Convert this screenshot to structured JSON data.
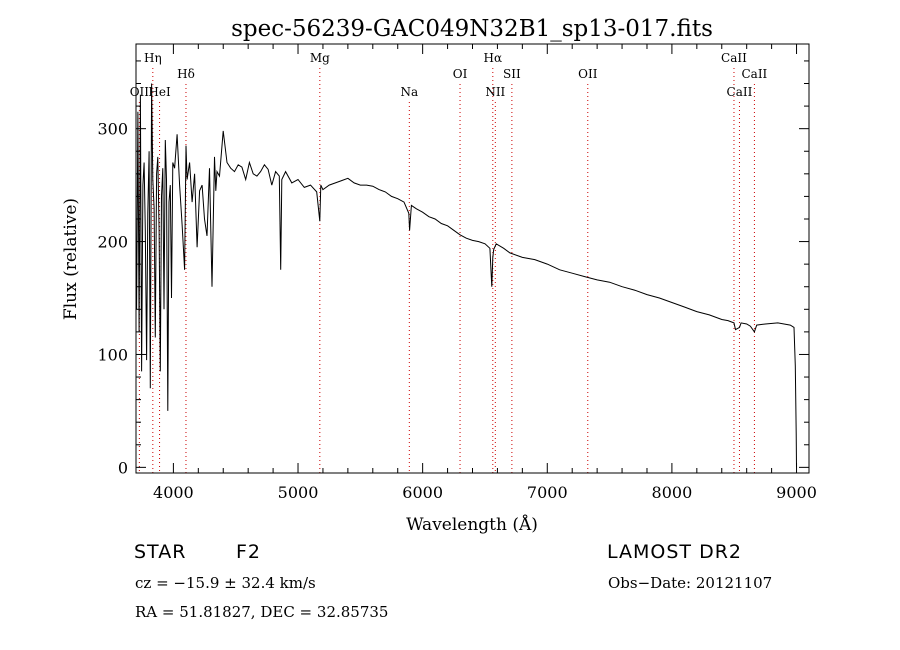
{
  "chart_data": {
    "type": "line",
    "title": "spec-56239-GAC049N32B1_sp13-017.fits",
    "xlabel": "Wavelength (Å)",
    "ylabel": "Flux (relative)",
    "xlim": [
      3700,
      9100
    ],
    "ylim": [
      -5,
      375
    ],
    "xticks": [
      4000,
      5000,
      6000,
      7000,
      8000,
      9000
    ],
    "yticks": [
      0,
      100,
      200,
      300
    ],
    "grid": false,
    "line_color": "#000000",
    "marker_color": "#cc0000",
    "series": [
      {
        "x": [
          3705,
          3715,
          3725,
          3735,
          3745,
          3755,
          3765,
          3775,
          3785,
          3795,
          3805,
          3815,
          3825,
          3835,
          3845,
          3855,
          3865,
          3875,
          3885,
          3895,
          3905,
          3915,
          3925,
          3935,
          3945,
          3955,
          3965,
          3975,
          3985,
          3995,
          4010,
          4030,
          4050,
          4070,
          4090,
          4101,
          4110,
          4130,
          4150,
          4170,
          4190,
          4210,
          4230,
          4250,
          4270,
          4290,
          4310,
          4330,
          4340,
          4350,
          4370,
          4400,
          4430,
          4460,
          4490,
          4520,
          4550,
          4580,
          4610,
          4640,
          4670,
          4700,
          4730,
          4760,
          4790,
          4820,
          4850,
          4861,
          4870,
          4900,
          4950,
          5000,
          5050,
          5100,
          5150,
          5175,
          5183,
          5200,
          5250,
          5300,
          5350,
          5400,
          5450,
          5500,
          5550,
          5600,
          5650,
          5700,
          5750,
          5800,
          5850,
          5889,
          5895,
          5910,
          5950,
          6000,
          6050,
          6100,
          6150,
          6200,
          6250,
          6300,
          6350,
          6400,
          6450,
          6500,
          6540,
          6555,
          6563,
          6570,
          6590,
          6650,
          6700,
          6800,
          6900,
          7000,
          7100,
          7200,
          7300,
          7400,
          7500,
          7600,
          7700,
          7800,
          7900,
          8000,
          8100,
          8200,
          8300,
          8400,
          8450,
          8498,
          8510,
          8542,
          8555,
          8600,
          8630,
          8662,
          8680,
          8750,
          8850,
          8950,
          8980,
          8990,
          8997,
          9000
        ],
        "y": [
          140,
          315,
          120,
          330,
          85,
          250,
          270,
          210,
          95,
          225,
          280,
          70,
          340,
          255,
          230,
          115,
          260,
          275,
          210,
          85,
          240,
          265,
          140,
          290,
          255,
          50,
          235,
          250,
          150,
          270,
          265,
          295,
          250,
          215,
          175,
          285,
          255,
          270,
          235,
          260,
          195,
          245,
          250,
          220,
          205,
          265,
          160,
          275,
          245,
          262,
          258,
          298,
          270,
          265,
          262,
          268,
          266,
          255,
          270,
          260,
          258,
          262,
          268,
          264,
          250,
          262,
          258,
          175,
          255,
          262,
          252,
          255,
          248,
          250,
          244,
          218,
          250,
          246,
          250,
          252,
          254,
          256,
          252,
          250,
          250,
          249,
          246,
          244,
          240,
          238,
          235,
          225,
          210,
          232,
          229,
          226,
          222,
          220,
          216,
          214,
          210,
          206,
          203,
          201,
          200,
          198,
          194,
          160,
          186,
          193,
          198,
          194,
          190,
          186,
          184,
          180,
          175,
          172,
          169,
          166,
          164,
          160,
          157,
          153,
          150,
          146,
          142,
          138,
          135,
          131,
          130,
          128,
          122,
          124,
          128,
          127,
          125,
          120,
          126,
          127,
          128,
          126,
          124,
          90,
          30,
          0
        ]
      }
    ],
    "lines": [
      {
        "label": "OII",
        "x": 3727,
        "row": 2
      },
      {
        "label": "Hη",
        "x": 3835,
        "row": 0
      },
      {
        "label": "HeI",
        "x": 3889,
        "row": 2
      },
      {
        "label": "Hδ",
        "x": 4101,
        "row": 1
      },
      {
        "label": "Mg",
        "x": 5175,
        "row": 0
      },
      {
        "label": "Na",
        "x": 5893,
        "row": 2
      },
      {
        "label": "OI",
        "x": 6300,
        "row": 1
      },
      {
        "label": "Hα",
        "x": 6563,
        "row": 0
      },
      {
        "label": "NII",
        "x": 6583,
        "row": 2
      },
      {
        "label": "SII",
        "x": 6716,
        "row": 1
      },
      {
        "label": "OII",
        "x": 7325,
        "row": 1
      },
      {
        "label": "CaII",
        "x": 8498,
        "row": 0
      },
      {
        "label": "CaII",
        "x": 8542,
        "row": 2
      },
      {
        "label": "CaII",
        "x": 8662,
        "row": 1
      }
    ]
  },
  "info": {
    "object_type": "STAR",
    "subclass": "F2",
    "redshift_text": "cz = −15.9 ± 32.4 km/s",
    "coords_text": "RA =  51.81827, DEC =  32.85735",
    "survey": "LAMOST DR2",
    "obs_date_text": "Obs−Date: 20121107"
  }
}
